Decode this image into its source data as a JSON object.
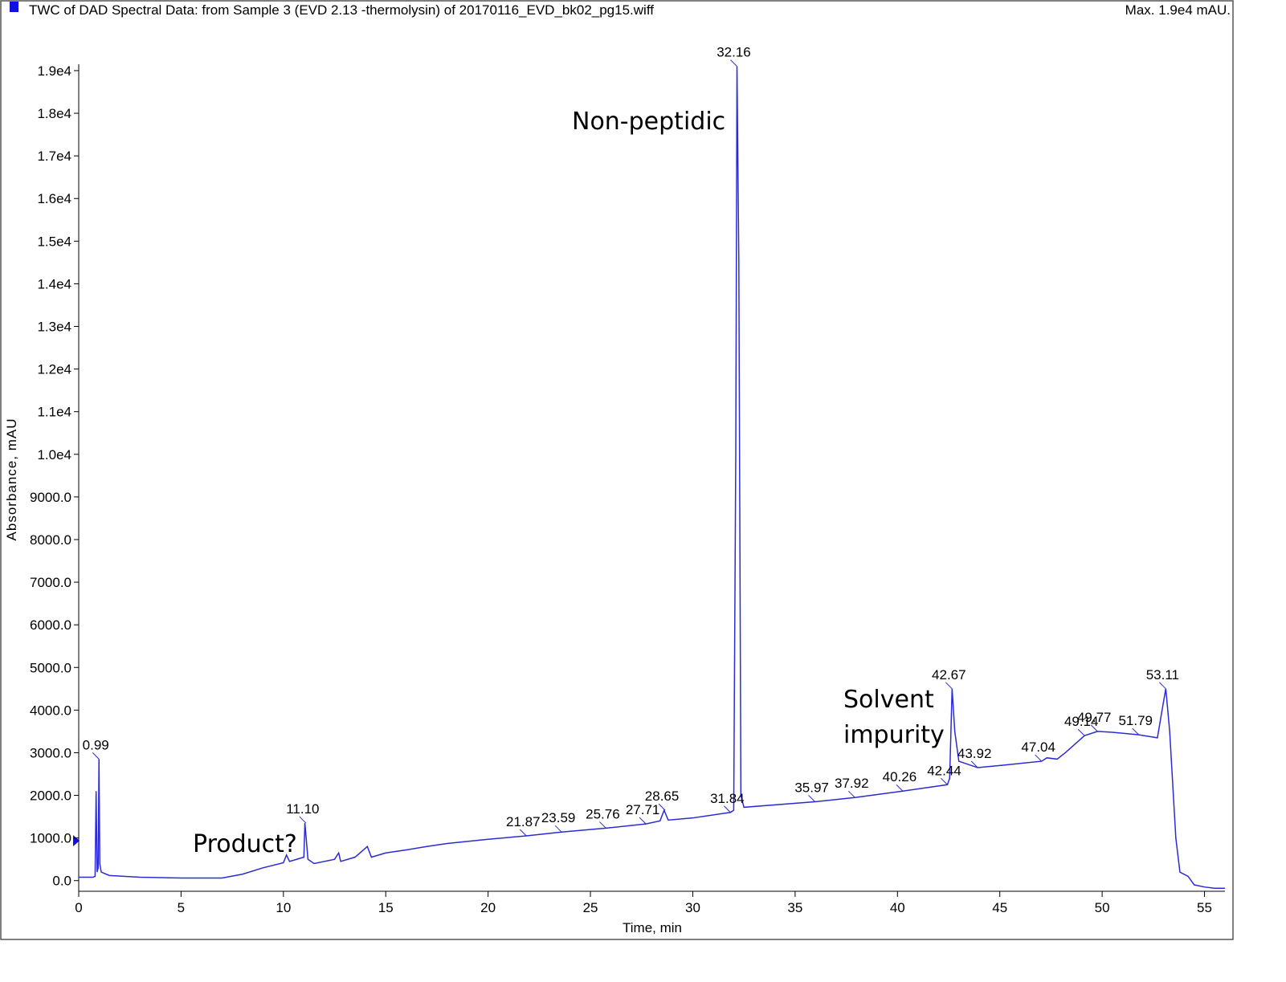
{
  "chart_data": {
    "type": "line",
    "title": "TWC of DAD Spectral Data: from Sample 3 (EVD 2.13 -thermolysin) of 20170116_EVD_bk02_pg15.wiff",
    "subtitle": "Max. 1.9e4 mAU.",
    "x_label": "Time, min",
    "y_label": "Absorbance, mAU",
    "xlim": [
      0,
      56
    ],
    "ylim": [
      -250,
      19150
    ],
    "xticks": [
      0,
      5,
      10,
      15,
      20,
      25,
      30,
      35,
      40,
      45,
      50,
      55
    ],
    "yticks": [
      {
        "value": 0,
        "label": "0.0"
      },
      {
        "value": 1000,
        "label": "1000.0"
      },
      {
        "value": 2000,
        "label": "2000.0"
      },
      {
        "value": 3000,
        "label": "3000.0"
      },
      {
        "value": 4000,
        "label": "4000.0"
      },
      {
        "value": 5000,
        "label": "5000.0"
      },
      {
        "value": 6000,
        "label": "6000.0"
      },
      {
        "value": 7000,
        "label": "7000.0"
      },
      {
        "value": 8000,
        "label": "8000.0"
      },
      {
        "value": 9000,
        "label": "9000.0"
      },
      {
        "value": 10000,
        "label": "1.0e4"
      },
      {
        "value": 11000,
        "label": "1.1e4"
      },
      {
        "value": 12000,
        "label": "1.2e4"
      },
      {
        "value": 13000,
        "label": "1.3e4"
      },
      {
        "value": 14000,
        "label": "1.4e4"
      },
      {
        "value": 15000,
        "label": "1.5e4"
      },
      {
        "value": 16000,
        "label": "1.6e4"
      },
      {
        "value": 17000,
        "label": "1.7e4"
      },
      {
        "value": 18000,
        "label": "1.8e4"
      },
      {
        "value": 19000,
        "label": "1.9e4"
      }
    ],
    "series": [
      {
        "color": "#2b2bd6",
        "x": [
          0,
          0.7,
          0.8,
          0.85,
          0.9,
          0.95,
          0.99,
          1.03,
          1.1,
          1.5,
          3,
          5,
          7,
          8,
          9,
          10,
          10.15,
          10.3,
          11,
          11.05,
          11.2,
          11.5,
          12.5,
          12.7,
          12.8,
          13.5,
          14.1,
          14.3,
          15,
          16,
          17,
          18,
          20,
          21.87,
          23.59,
          25.76,
          27.71,
          28.4,
          28.6,
          28.8,
          30,
          31.84,
          32.0,
          32.1,
          32.16,
          32.25,
          32.35,
          32.5,
          35.97,
          37.92,
          40.26,
          42.44,
          42.55,
          42.67,
          42.8,
          43.0,
          43.92,
          45,
          47.04,
          47.3,
          47.8,
          48.2,
          49.14,
          49.77,
          50.5,
          51.79,
          52.7,
          53.0,
          53.11,
          53.3,
          53.6,
          53.8,
          54.2,
          54.5,
          55,
          55.5,
          56
        ],
        "values": [
          80,
          80,
          100,
          2100,
          200,
          300,
          2850,
          400,
          200,
          120,
          80,
          60,
          60,
          150,
          300,
          420,
          600,
          450,
          550,
          1350,
          500,
          400,
          500,
          650,
          450,
          550,
          800,
          550,
          650,
          720,
          800,
          870,
          970,
          1050,
          1140,
          1230,
          1330,
          1400,
          1650,
          1420,
          1470,
          1600,
          1650,
          10000,
          19100,
          14500,
          2000,
          1720,
          1850,
          1950,
          2100,
          2250,
          2400,
          4500,
          3500,
          2800,
          2650,
          2700,
          2800,
          2880,
          2850,
          3000,
          3400,
          3500,
          3480,
          3420,
          3350,
          4200,
          4500,
          3500,
          1000,
          200,
          100,
          -100,
          -150,
          -180,
          -180
        ]
      }
    ],
    "peaks": {
      "x": [
        0.99,
        11.1,
        21.87,
        23.59,
        25.76,
        27.71,
        28.65,
        31.84,
        32.16,
        35.97,
        37.92,
        40.26,
        42.44,
        42.67,
        43.92,
        47.04,
        49.14,
        49.77,
        51.79,
        53.11
      ],
      "y": [
        2850,
        1350,
        1050,
        1140,
        1230,
        1330,
        1650,
        1600,
        19100,
        1850,
        1950,
        2100,
        2250,
        4500,
        2650,
        2800,
        3400,
        3500,
        3420,
        4500
      ],
      "value_labels": [
        "0.99",
        "11.10",
        "21.87",
        "23.59",
        "25.76",
        "27.71",
        "28.65",
        "31.84",
        "32.16",
        "35.97",
        "37.92",
        "40.26",
        "42.44",
        "42.67",
        "43.92",
        "47.04",
        "49.14",
        "49.77",
        "51.79",
        "53.11"
      ]
    },
    "annotations": [
      "Non-peptidic",
      "Product?",
      "Solvent impurity"
    ]
  }
}
